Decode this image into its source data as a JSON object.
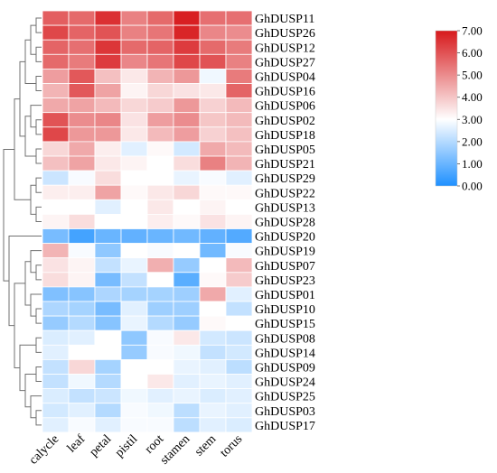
{
  "chart_data": {
    "type": "heatmap",
    "title": "",
    "xlabel": "",
    "ylabel": "",
    "columns": [
      "calycle",
      "leaf",
      "petal",
      "pistil",
      "root",
      "stamen",
      "stem",
      "torus"
    ],
    "rows": [
      "GhDUSP11",
      "GhDUSP26",
      "GhDUSP12",
      "GhDUSP27",
      "GhDUSP04",
      "GhDUSP16",
      "GhDUSP06",
      "GhDUSP02",
      "GhDUSP18",
      "GhDUSP05",
      "GhDUSP21",
      "GhDUSP29",
      "GhDUSP22",
      "GhDUSP13",
      "GhDUSP28",
      "GhDUSP20",
      "GhDUSP19",
      "GhDUSP07",
      "GhDUSP23",
      "GhDUSP01",
      "GhDUSP10",
      "GhDUSP15",
      "GhDUSP08",
      "GhDUSP14",
      "GhDUSP09",
      "GhDUSP24",
      "GhDUSP25",
      "GhDUSP03",
      "GhDUSP17"
    ],
    "values": [
      [
        5.8,
        5.6,
        6.6,
        5.2,
        5.6,
        6.9,
        5.5,
        5.5
      ],
      [
        6.2,
        5.7,
        6.0,
        5.2,
        5.4,
        6.8,
        5.1,
        5.0
      ],
      [
        5.7,
        5.5,
        6.5,
        5.6,
        5.7,
        6.4,
        5.6,
        5.3
      ],
      [
        5.6,
        5.3,
        6.4,
        5.1,
        5.4,
        6.2,
        6.0,
        5.2
      ],
      [
        4.7,
        5.9,
        4.1,
        3.4,
        4.3,
        4.8,
        2.8,
        5.3
      ],
      [
        4.3,
        5.9,
        4.6,
        3.2,
        3.7,
        3.5,
        3.4,
        5.7
      ],
      [
        4.5,
        4.6,
        4.2,
        3.7,
        3.9,
        4.8,
        3.8,
        4.2
      ],
      [
        6.0,
        5.0,
        5.1,
        3.5,
        4.7,
        5.0,
        4.0,
        4.2
      ],
      [
        6.2,
        4.8,
        4.8,
        3.4,
        4.2,
        4.7,
        3.8,
        4.1
      ],
      [
        3.7,
        4.5,
        3.3,
        2.6,
        3.1,
        2.4,
        4.5,
        4.2
      ],
      [
        4.1,
        4.6,
        3.4,
        3.2,
        3.0,
        3.6,
        5.2,
        4.3
      ],
      [
        2.3,
        2.9,
        3.6,
        3.0,
        3.0,
        2.7,
        2.9,
        2.6
      ],
      [
        3.3,
        3.3,
        4.6,
        3.1,
        3.4,
        3.7,
        3.1,
        3.1
      ],
      [
        3.0,
        3.0,
        2.6,
        3.0,
        3.4,
        3.0,
        3.2,
        3.0
      ],
      [
        3.2,
        3.6,
        3.0,
        3.0,
        3.3,
        3.1,
        3.5,
        3.2
      ],
      [
        1.2,
        0.5,
        1.0,
        0.9,
        1.0,
        1.1,
        0.9,
        0.7
      ],
      [
        4.3,
        2.9,
        1.5,
        3.0,
        2.9,
        3.0,
        1.1,
        2.9
      ],
      [
        3.5,
        3.2,
        2.2,
        2.7,
        4.4,
        1.6,
        3.0,
        4.2
      ],
      [
        3.6,
        3.2,
        1.2,
        2.2,
        3.0,
        0.8,
        3.1,
        3.9
      ],
      [
        1.3,
        1.4,
        1.9,
        1.8,
        1.8,
        1.7,
        4.5,
        2.6
      ],
      [
        1.9,
        1.8,
        1.2,
        2.6,
        1.7,
        1.7,
        3.0,
        2.2
      ],
      [
        1.6,
        2.0,
        1.4,
        2.7,
        2.0,
        1.6,
        3.1,
        3.0
      ],
      [
        2.5,
        2.6,
        3.0,
        1.5,
        2.9,
        3.4,
        2.4,
        2.3
      ],
      [
        2.6,
        3.0,
        3.0,
        1.6,
        2.9,
        2.8,
        2.2,
        2.4
      ],
      [
        2.2,
        3.7,
        1.8,
        3.0,
        3.0,
        2.7,
        2.6,
        2.1
      ],
      [
        2.2,
        2.8,
        2.0,
        3.0,
        3.4,
        2.6,
        2.7,
        2.6
      ],
      [
        2.5,
        2.2,
        2.3,
        2.8,
        2.6,
        2.7,
        2.5,
        2.6
      ],
      [
        2.4,
        2.6,
        2.0,
        2.9,
        2.8,
        2.1,
        2.7,
        2.6
      ],
      [
        2.6,
        2.9,
        2.6,
        2.9,
        2.9,
        2.1,
        2.6,
        2.5
      ]
    ],
    "scale": {
      "min": 0,
      "max": 7,
      "ticks": [
        "0.00",
        "1.00",
        "2.00",
        "3.00",
        "4.00",
        "5.00",
        "6.00",
        "7.00"
      ],
      "colors": {
        "low": "#1e90ff",
        "mid": "#ffffff",
        "high": "#d7191c"
      }
    },
    "dendrogram": "left"
  }
}
